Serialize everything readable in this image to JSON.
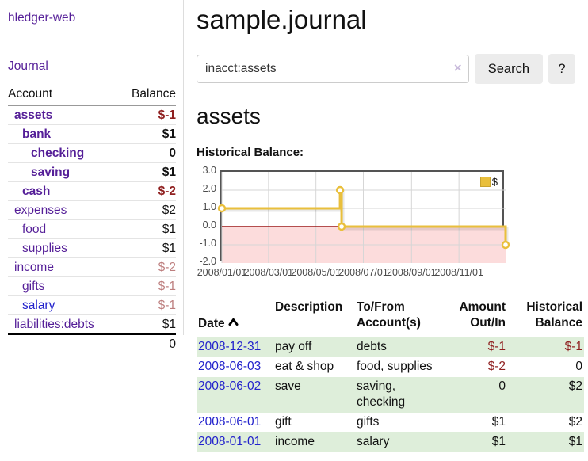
{
  "sidebar": {
    "brand": "hledger-web",
    "nav_journal": "Journal",
    "accounts_table": {
      "headers": {
        "account": "Account",
        "balance": "Balance"
      },
      "rows": [
        {
          "name": "assets",
          "balance": "$-1",
          "depth": 0,
          "bold": true,
          "tone": "neg-strong",
          "link": "visited"
        },
        {
          "name": "bank",
          "balance": "$1",
          "depth": 1,
          "bold": true,
          "tone": "pos",
          "link": "visited"
        },
        {
          "name": "checking",
          "balance": "0",
          "depth": 2,
          "bold": true,
          "tone": "pos",
          "link": "visited"
        },
        {
          "name": "saving",
          "balance": "$1",
          "depth": 2,
          "bold": true,
          "tone": "pos",
          "link": "visited"
        },
        {
          "name": "cash",
          "balance": "$-2",
          "depth": 1,
          "bold": true,
          "tone": "neg-strong",
          "link": "visited"
        },
        {
          "name": "expenses",
          "balance": "$2",
          "depth": 0,
          "bold": false,
          "tone": "pos",
          "link": "visited"
        },
        {
          "name": "food",
          "balance": "$1",
          "depth": 1,
          "bold": false,
          "tone": "pos",
          "link": "visited"
        },
        {
          "name": "supplies",
          "balance": "$1",
          "depth": 1,
          "bold": false,
          "tone": "pos",
          "link": "visited"
        },
        {
          "name": "income",
          "balance": "$-2",
          "depth": 0,
          "bold": false,
          "tone": "neg-soft",
          "link": "visited"
        },
        {
          "name": "gifts",
          "balance": "$-1",
          "depth": 1,
          "bold": false,
          "tone": "neg-soft",
          "link": "visited"
        },
        {
          "name": "salary",
          "balance": "$-1",
          "depth": 1,
          "bold": false,
          "tone": "neg-soft",
          "link": "unvisited"
        },
        {
          "name": "liabilities:debts",
          "balance": "$1",
          "depth": 0,
          "bold": false,
          "tone": "pos",
          "link": "visited"
        }
      ],
      "total": "0"
    }
  },
  "header": {
    "title": "sample.journal"
  },
  "search": {
    "query": "inacct:assets",
    "clear_icon": "×",
    "search_label": "Search",
    "help_label": "?"
  },
  "account_page": {
    "title": "assets",
    "chart_label": "Historical Balance:"
  },
  "chart_data": {
    "type": "line",
    "style": "step-after",
    "title": "Historical Balance",
    "series": [
      {
        "name": "$",
        "color": "#e9bf3c",
        "points": [
          [
            "2008-01-01",
            1
          ],
          [
            "2008-06-01",
            2
          ],
          [
            "2008-06-03",
            0
          ],
          [
            "2008-12-31",
            -1
          ]
        ]
      }
    ],
    "xlim": [
      "2008-01-01",
      "2008-12-31"
    ],
    "ylim": [
      -2,
      3
    ],
    "x_ticks": [
      "2008-01-01",
      "2008-03-01",
      "2008-05-01",
      "2008-07-01",
      "2008-09-01",
      "2008-11-01"
    ],
    "x_tick_labels": [
      "2008/01/01",
      "2008/03/01",
      "2008/05/01",
      "2008/07/01",
      "2008/09/01",
      "2008/11/01"
    ],
    "y_ticks": [
      3,
      2,
      1,
      0,
      -1,
      -2
    ],
    "y_tick_labels": [
      "3.0",
      "2.0",
      "1.0",
      "0.0",
      "-1.0",
      "-2.0"
    ],
    "y_grid": [
      2,
      1,
      -1
    ],
    "grid": true,
    "negative_region_color": "#fcdcdc",
    "zero_line_color": "#9b1414",
    "legend": {
      "label": "$",
      "swatch_color": "#e9bf3c",
      "position": "top-right"
    }
  },
  "register_table": {
    "headers": {
      "date": "Date",
      "sort_icon": "chevron-up",
      "description": "Description",
      "accounts": "To/From\nAccount(s)",
      "amount": "Amount\nOut/In",
      "balance": "Historical\nBalance"
    },
    "rows": [
      {
        "date": "2008-12-31",
        "description": "pay off",
        "accounts": "debts",
        "amount": "$-1",
        "balance": "$-1"
      },
      {
        "date": "2008-06-03",
        "description": "eat & shop",
        "accounts": "food, supplies",
        "amount": "$-2",
        "balance": "0"
      },
      {
        "date": "2008-06-02",
        "description": "save",
        "accounts": "saving,\nchecking",
        "amount": "0",
        "balance": "$2"
      },
      {
        "date": "2008-06-01",
        "description": "gift",
        "accounts": "gifts",
        "amount": "$1",
        "balance": "$2"
      },
      {
        "date": "2008-01-01",
        "description": "income",
        "accounts": "salary",
        "amount": "$1",
        "balance": "$1"
      }
    ]
  }
}
